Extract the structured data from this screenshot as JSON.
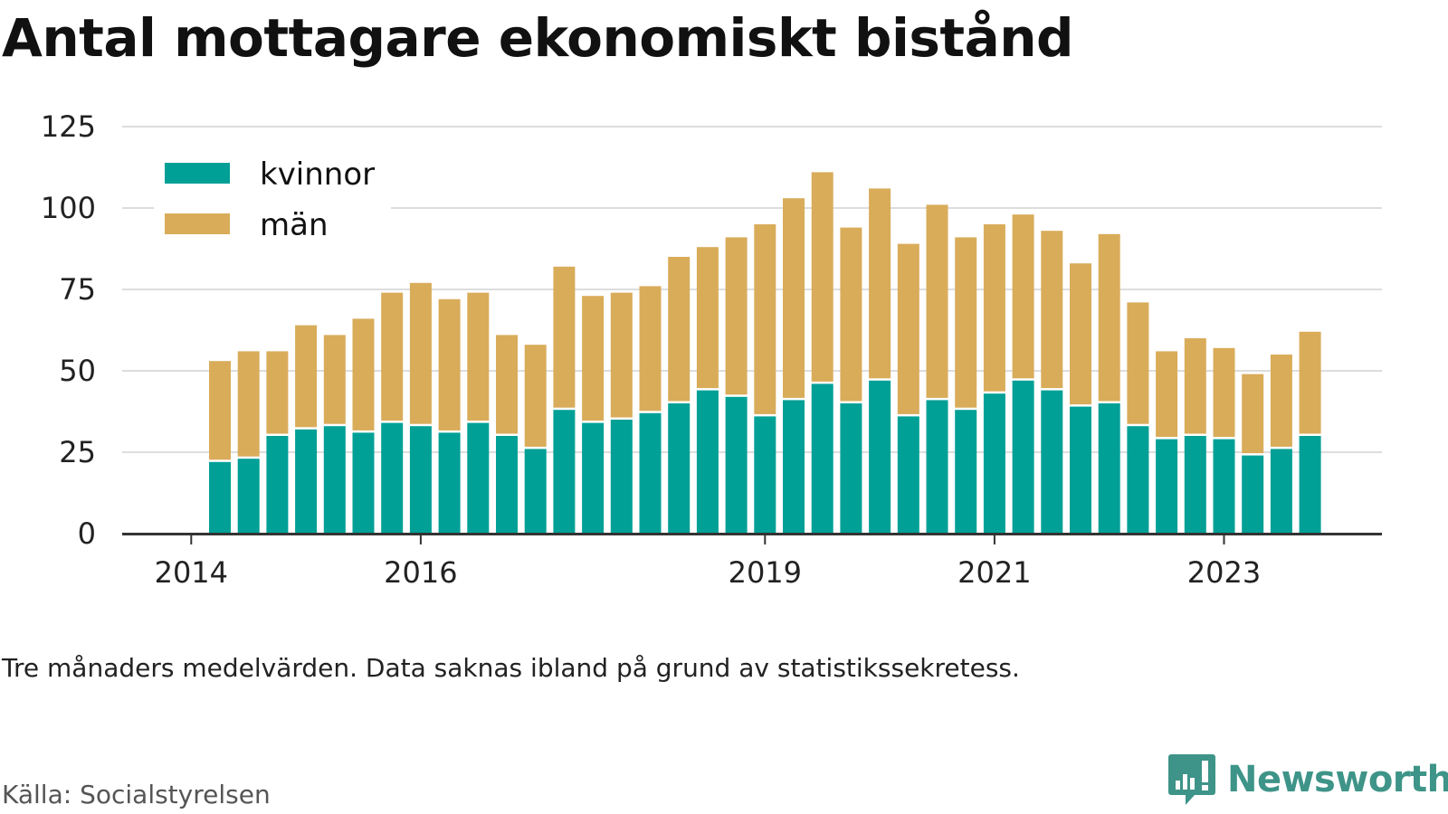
{
  "title": "Antal mottagare ekonomiskt bistånd",
  "note": "Tre månaders medelvärden. Data saknas ibland på grund av statistikssekretess.",
  "source": "Källa: Socialstyrelsen",
  "brand": "Newsworthy",
  "colors": {
    "kvinnor": "#00a096",
    "man": "#d9ac5a",
    "grid": "#dddddd",
    "axis": "#333333",
    "brand": "#3e9488"
  },
  "chart_data": {
    "type": "bar",
    "stacked": true,
    "legend_position": "top-left",
    "grid": true,
    "ylim": [
      0,
      125
    ],
    "yticks": [
      0,
      25,
      50,
      75,
      100,
      125
    ],
    "xticks": [
      "2014",
      "2016",
      "2019",
      "2021",
      "2023"
    ],
    "series": [
      {
        "name": "kvinnor",
        "values": [
          22,
          23,
          30,
          32,
          33,
          31,
          34,
          33,
          31,
          34,
          30,
          26,
          38,
          34,
          35,
          37,
          40,
          44,
          42,
          36,
          41,
          46,
          40,
          47,
          36,
          41,
          38,
          43,
          47,
          44,
          39,
          40,
          33,
          29,
          30,
          29,
          24,
          26,
          30
        ]
      },
      {
        "name": "män",
        "values": [
          31,
          33,
          26,
          32,
          28,
          35,
          40,
          44,
          41,
          40,
          31,
          32,
          44,
          39,
          39,
          39,
          45,
          44,
          49,
          59,
          62,
          65,
          54,
          59,
          53,
          60,
          53,
          52,
          51,
          49,
          44,
          52,
          38,
          27,
          30,
          28,
          25,
          29,
          32
        ]
      }
    ]
  }
}
